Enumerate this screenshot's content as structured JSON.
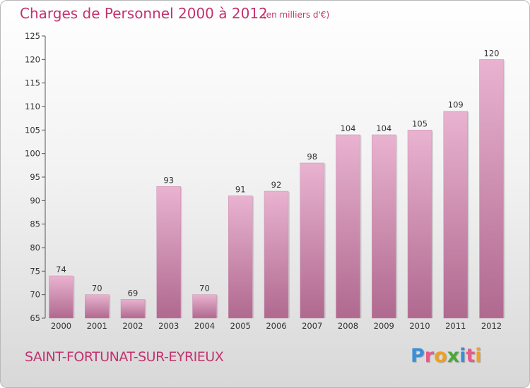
{
  "header": {
    "title": "Charges de Personnel 2000 à 2012",
    "subtitle": "(en milliers d'€)"
  },
  "footer": {
    "city": "SAINT-FORTUNAT-SUR-EYRIEUX",
    "logo": {
      "letters": [
        {
          "char": "P",
          "color": "#3a8ed8"
        },
        {
          "char": "r",
          "color": "#e85a8a"
        },
        {
          "char": "o",
          "color": "#f0a020"
        },
        {
          "char": "x",
          "color": "#4aa83a"
        },
        {
          "char": "i",
          "color": "#3a8ed8"
        },
        {
          "char": "t",
          "color": "#e85a8a"
        },
        {
          "char": "i",
          "color": "#f0a020"
        }
      ]
    }
  },
  "colors": {
    "bar_light": "#e9b3d0",
    "bar_dark": "#b0698f",
    "title": "#c3326e"
  },
  "chart_data": {
    "type": "bar",
    "title": "Charges de Personnel 2000 à 2012",
    "subtitle": "(en milliers d'€)",
    "xlabel": "",
    "ylabel": "",
    "categories": [
      "2000",
      "2001",
      "2002",
      "2003",
      "2004",
      "2005",
      "2006",
      "2007",
      "2008",
      "2009",
      "2010",
      "2011",
      "2012"
    ],
    "values": [
      74,
      70,
      69,
      93,
      70,
      91,
      92,
      98,
      104,
      104,
      105,
      109,
      120
    ],
    "ylim": [
      65,
      125
    ],
    "yticks": [
      65,
      70,
      75,
      80,
      85,
      90,
      95,
      100,
      105,
      110,
      115,
      120,
      125
    ],
    "grid": false,
    "legend": "none"
  }
}
